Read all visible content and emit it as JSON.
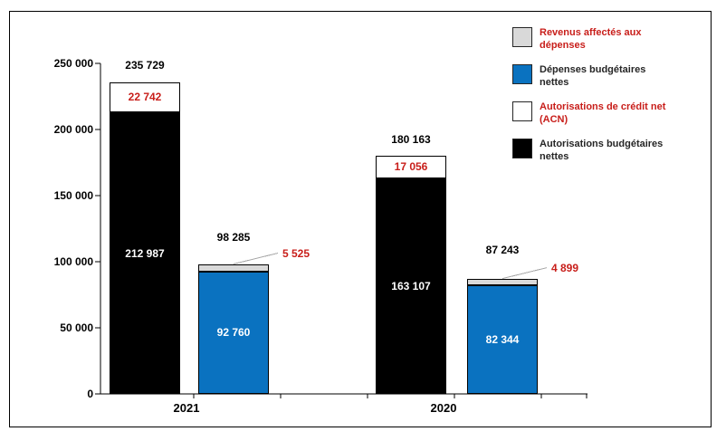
{
  "figure": {
    "background_color": "#ffffff",
    "border_color": "#000000"
  },
  "chart_data": {
    "type": "bar",
    "subtype": "grouped-stacked",
    "title": "",
    "xlabel": "",
    "ylabel": "",
    "grid": false,
    "categories": [
      "2021",
      "2020"
    ],
    "y_axis": {
      "min": 0,
      "max": 250000,
      "tick_step": 50000,
      "tick_labels": [
        "0",
        "50 000",
        "100 000",
        "150 000",
        "200 000",
        "250 000"
      ]
    },
    "series": [
      {
        "name": "Autorisations budgétaires nettes",
        "color": "#000000",
        "values": [
          212987,
          163107
        ]
      },
      {
        "name": "Autorisations de crédit net (ACN)",
        "color": "#ffffff",
        "values": [
          22742,
          17056
        ]
      },
      {
        "name": "Dépenses budgétaires nettes",
        "color": "#0a72c0",
        "values": [
          92760,
          82344
        ]
      },
      {
        "name": "Revenus affectés aux dépenses",
        "color": "#d9d9d9",
        "values": [
          5525,
          4899
        ]
      }
    ],
    "bars": [
      {
        "category": "2021",
        "total": 235729,
        "total_label": "235 729",
        "segments": [
          {
            "series": "Autorisations budgétaires nettes",
            "value": 212987,
            "label": "212 987",
            "fill": "#000000",
            "label_color": "#ffffff",
            "label_placement": "inside"
          },
          {
            "series": "Autorisations de crédit net (ACN)",
            "value": 22742,
            "label": "22 742",
            "fill": "#ffffff",
            "label_color": "#c81e1a",
            "label_placement": "inside"
          }
        ]
      },
      {
        "category": "2021",
        "total": 98285,
        "total_label": "98 285",
        "segments": [
          {
            "series": "Dépenses budgétaires nettes",
            "value": 92760,
            "label": "92 760",
            "fill": "#0a72c0",
            "label_color": "#ffffff",
            "label_placement": "inside"
          },
          {
            "series": "Revenus affectés aux dépenses",
            "value": 5525,
            "label": "5 525",
            "fill": "#d9d9d9",
            "label_color": "#c81e1a",
            "label_placement": "outside-leader"
          }
        ]
      },
      {
        "category": "2020",
        "total": 180163,
        "total_label": "180 163",
        "segments": [
          {
            "series": "Autorisations budgétaires nettes",
            "value": 163107,
            "label": "163 107",
            "fill": "#000000",
            "label_color": "#ffffff",
            "label_placement": "inside"
          },
          {
            "series": "Autorisations de crédit net (ACN)",
            "value": 17056,
            "label": "17 056",
            "fill": "#ffffff",
            "label_color": "#c81e1a",
            "label_placement": "inside"
          }
        ]
      },
      {
        "category": "2020",
        "total": 87243,
        "total_label": "87 243",
        "segments": [
          {
            "series": "Dépenses budgétaires nettes",
            "value": 82344,
            "label": "82 344",
            "fill": "#0a72c0",
            "label_color": "#ffffff",
            "label_placement": "inside"
          },
          {
            "series": "Revenus affectés aux dépenses",
            "value": 4899,
            "label": "4 899",
            "fill": "#d9d9d9",
            "label_color": "#c81e1a",
            "label_placement": "outside-leader"
          }
        ]
      }
    ],
    "legend": {
      "position": "right-top",
      "items": [
        {
          "label": "Revenus affectés aux dépenses",
          "swatch_color": "#d9d9d9",
          "text_color": "#c81e1a"
        },
        {
          "label": "Dépenses budgétaires nettes",
          "swatch_color": "#0a72c0",
          "text_color": "#262626"
        },
        {
          "label": "Autorisations de crédit net (ACN)",
          "swatch_color": "#ffffff",
          "text_color": "#c81e1a"
        },
        {
          "label": "Autorisations budgétaires nettes",
          "swatch_color": "#000000",
          "text_color": "#262626"
        }
      ]
    },
    "colors": {
      "highlight_red": "#c81e1a",
      "bar_blue": "#0a72c0",
      "bar_gray": "#d9d9d9",
      "bar_black": "#000000",
      "leader_line": "#a6a6a6",
      "axis": "#000000"
    }
  }
}
